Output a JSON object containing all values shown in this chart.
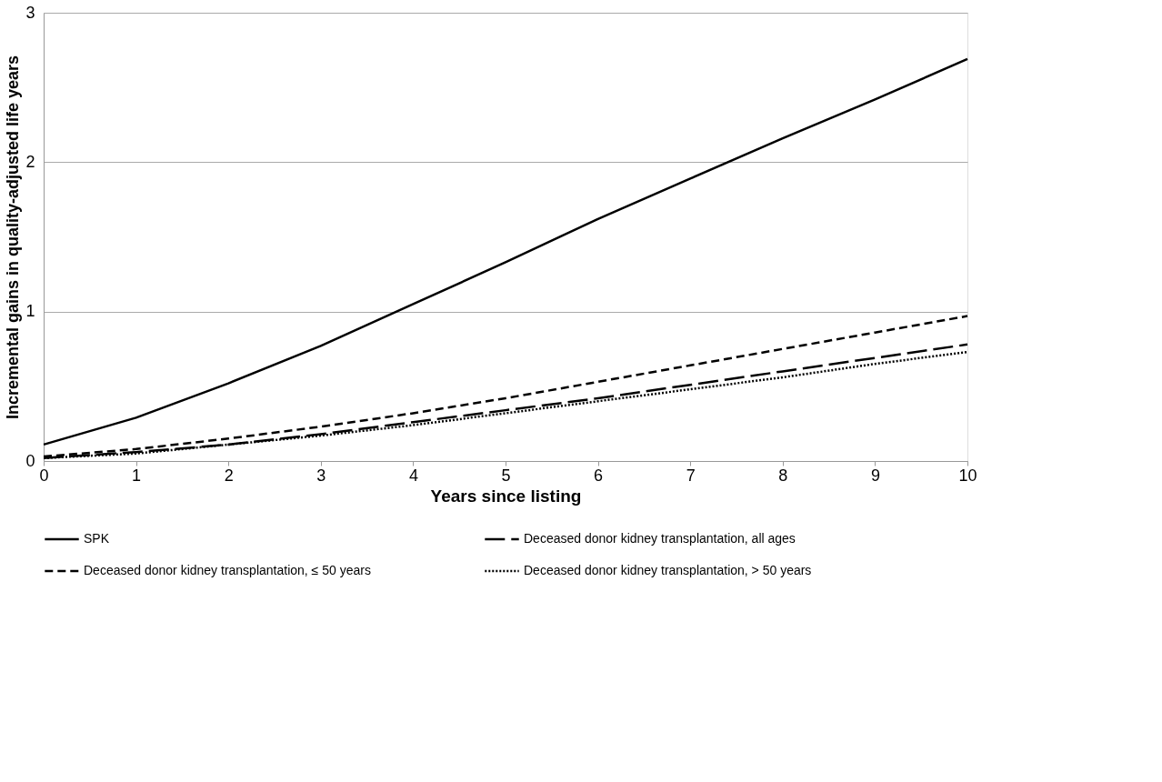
{
  "chart_data": {
    "type": "line",
    "xlabel": "Years since listing",
    "ylabel": "Incremental gains in quality-adjusted life years",
    "x": [
      0,
      1,
      2,
      3,
      4,
      5,
      6,
      7,
      8,
      9,
      10
    ],
    "series": [
      {
        "name": "SPK",
        "color": "#000000",
        "line_style": "solid",
        "values": [
          0.11,
          0.29,
          0.52,
          0.77,
          1.05,
          1.33,
          1.62,
          1.89,
          2.16,
          2.42,
          2.69
        ]
      },
      {
        "name": "Deceased donor kidney transplantation, all ages",
        "color": "#000000",
        "line_style": "dashed",
        "values": [
          0.02,
          0.06,
          0.11,
          0.18,
          0.26,
          0.34,
          0.42,
          0.51,
          0.6,
          0.69,
          0.78
        ]
      },
      {
        "name": "Deceased donor kidney transplantation, ≤ 50 years",
        "color": "#000000",
        "line_style": "dashed",
        "values": [
          0.03,
          0.08,
          0.15,
          0.23,
          0.32,
          0.42,
          0.53,
          0.64,
          0.75,
          0.86,
          0.97
        ]
      },
      {
        "name": "Deceased donor kidney transplantation, > 50 years",
        "color": "#000000",
        "line_style": "dotted",
        "values": [
          0.02,
          0.05,
          0.11,
          0.17,
          0.24,
          0.32,
          0.4,
          0.48,
          0.56,
          0.65,
          0.73
        ]
      }
    ],
    "xlim": [
      0,
      10
    ],
    "xticks": [
      0,
      1,
      2,
      3,
      4,
      5,
      6,
      7,
      8,
      9,
      10
    ],
    "ylim": [
      0,
      3
    ],
    "yticks": [
      0,
      1,
      2,
      3
    ],
    "grid": "y",
    "legend": "bottom",
    "marker": "none"
  }
}
